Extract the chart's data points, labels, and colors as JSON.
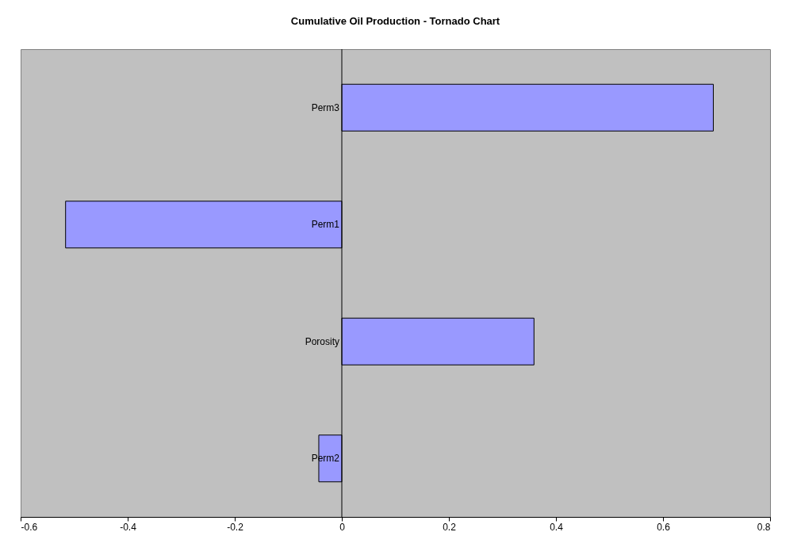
{
  "chart_data": {
    "type": "bar",
    "orientation": "horizontal",
    "title": "Cumulative Oil Production - Tornado Chart",
    "categories": [
      "Perm3",
      "Perm1",
      "Porosity",
      "Perm2"
    ],
    "values": [
      0.694,
      -0.516,
      0.359,
      -0.043
    ],
    "color": "#9999ff",
    "xlim": [
      -0.6,
      0.8
    ],
    "xticks": [
      -0.6,
      -0.4,
      -0.2,
      0,
      0.2,
      0.4,
      0.6,
      0.8
    ],
    "grid": false
  }
}
